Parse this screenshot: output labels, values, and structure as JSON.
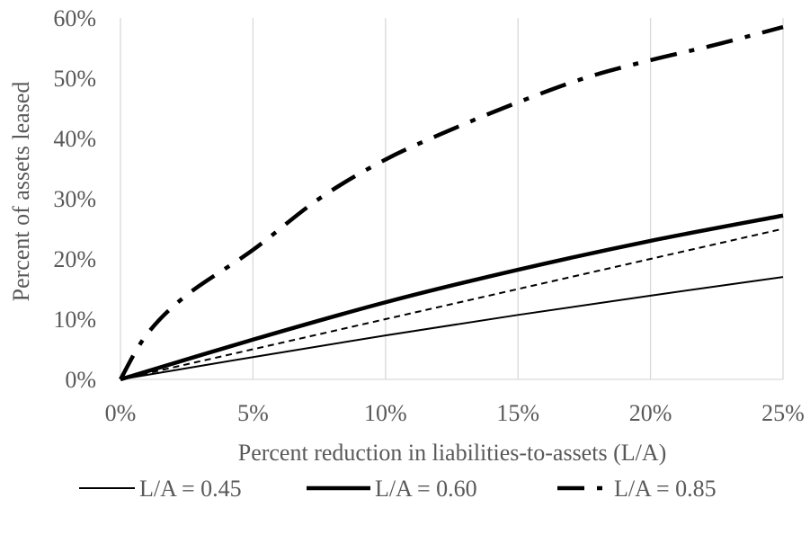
{
  "chart_data": {
    "type": "line",
    "title": "",
    "xlabel": "Percent reduction in liabilities-to-assets (L/A)",
    "ylabel": "Percent of assets leased",
    "x_tick_labels": [
      "0%",
      "5%",
      "10%",
      "15%",
      "20%",
      "25%"
    ],
    "y_tick_labels": [
      "0%",
      "10%",
      "20%",
      "30%",
      "40%",
      "50%",
      "60%"
    ],
    "x_ticks": [
      0,
      5,
      10,
      15,
      20,
      25
    ],
    "y_ticks": [
      0,
      10,
      20,
      30,
      40,
      50,
      60
    ],
    "xlim": [
      0,
      25
    ],
    "ylim": [
      0,
      60
    ],
    "grid": "vertical",
    "legend_position": "bottom",
    "series": [
      {
        "name": "L/A = 0.45",
        "style": "thin-solid",
        "color": "#000000",
        "x": [
          0,
          5,
          10,
          15,
          20,
          25
        ],
        "y": [
          0,
          3.7,
          7.3,
          10.7,
          13.9,
          17.0
        ]
      },
      {
        "name": "L/A = 0.60",
        "style": "thick-solid",
        "color": "#000000",
        "x": [
          0,
          5,
          10,
          15,
          20,
          25
        ],
        "y": [
          0,
          6.6,
          12.8,
          18.2,
          23.0,
          27.2
        ]
      },
      {
        "name": "",
        "style": "thin-dashed",
        "color": "#000000",
        "x": [
          0,
          5,
          10,
          15,
          20,
          25
        ],
        "y": [
          0,
          5,
          10,
          15,
          20,
          25
        ]
      },
      {
        "name": "L/A = 0.85",
        "style": "thick-dash-dot",
        "color": "#000000",
        "x": [
          0,
          1,
          2.5,
          5,
          7.5,
          10,
          12.5,
          15,
          17.5,
          20,
          22.5,
          25
        ],
        "y": [
          0,
          7.5,
          14,
          21.5,
          30,
          36.5,
          41.5,
          46,
          50,
          53,
          55.6,
          58.5
        ]
      }
    ]
  }
}
